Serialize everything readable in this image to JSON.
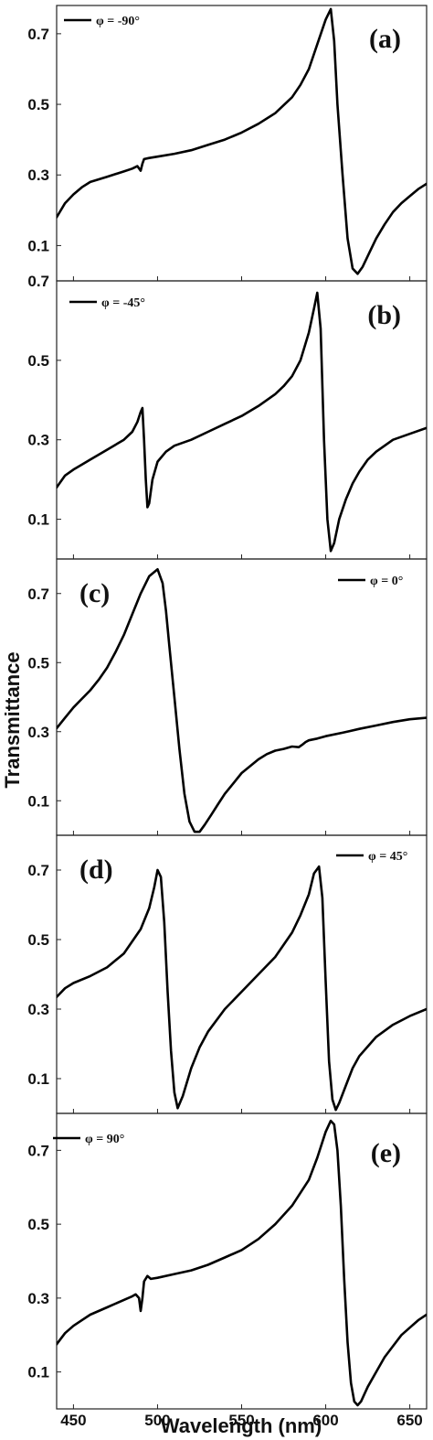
{
  "chart_data": {
    "type": "line",
    "xlabel": "Wavelength (nm)",
    "ylabel": "Transmittance",
    "xlim": [
      440,
      660
    ],
    "x_ticks": [
      450,
      500,
      550,
      600,
      650
    ],
    "y_ticks": [
      0.1,
      0.3,
      0.5,
      0.7
    ],
    "line_color": "#000000",
    "panels": [
      {
        "label": "(a)",
        "legend": "φ = -90°",
        "ylim": [
          0.0,
          0.78
        ],
        "y_tick_labels": [
          "0.1",
          "0.3",
          "0.5",
          "0.7"
        ],
        "x": [
          440,
          445,
          450,
          455,
          460,
          470,
          480,
          485,
          488,
          490,
          491,
          492,
          495,
          500,
          510,
          520,
          530,
          540,
          550,
          560,
          570,
          580,
          585,
          590,
          595,
          600,
          603,
          605,
          607,
          610,
          613,
          616,
          619,
          622,
          626,
          630,
          635,
          640,
          645,
          650,
          655,
          660
        ],
        "y": [
          0.18,
          0.22,
          0.245,
          0.265,
          0.28,
          0.295,
          0.31,
          0.318,
          0.325,
          0.312,
          0.332,
          0.345,
          0.348,
          0.352,
          0.36,
          0.37,
          0.385,
          0.4,
          0.42,
          0.445,
          0.475,
          0.52,
          0.555,
          0.6,
          0.67,
          0.74,
          0.77,
          0.68,
          0.5,
          0.3,
          0.12,
          0.035,
          0.02,
          0.04,
          0.08,
          0.12,
          0.16,
          0.195,
          0.22,
          0.24,
          0.26,
          0.275
        ]
      },
      {
        "label": "(b)",
        "legend": "φ = -45°",
        "ylim": [
          0.0,
          0.7
        ],
        "y_tick_labels": [
          "0.1",
          "0.3",
          "0.5",
          "0.7"
        ],
        "x": [
          440,
          445,
          450,
          460,
          470,
          480,
          485,
          488,
          490,
          491,
          492,
          493,
          494,
          495,
          497,
          500,
          505,
          510,
          520,
          530,
          540,
          550,
          560,
          570,
          575,
          580,
          585,
          590,
          593,
          595,
          597,
          599,
          601,
          603,
          605,
          608,
          612,
          616,
          620,
          625,
          630,
          640,
          650,
          660
        ],
        "y": [
          0.18,
          0.21,
          0.225,
          0.25,
          0.275,
          0.3,
          0.32,
          0.345,
          0.37,
          0.38,
          0.3,
          0.2,
          0.13,
          0.14,
          0.2,
          0.245,
          0.27,
          0.285,
          0.3,
          0.32,
          0.34,
          0.36,
          0.385,
          0.415,
          0.435,
          0.46,
          0.5,
          0.57,
          0.63,
          0.67,
          0.58,
          0.3,
          0.1,
          0.02,
          0.04,
          0.1,
          0.15,
          0.19,
          0.22,
          0.25,
          0.27,
          0.3,
          0.315,
          0.33
        ]
      },
      {
        "label": "(c)",
        "legend": "φ = 0°",
        "ylim": [
          0.0,
          0.8
        ],
        "y_tick_labels": [
          "0.1",
          "0.3",
          "0.5",
          "0.7"
        ],
        "x": [
          440,
          445,
          450,
          455,
          460,
          465,
          470,
          475,
          480,
          485,
          490,
          495,
          500,
          503,
          505,
          507,
          510,
          513,
          516,
          519,
          522,
          525,
          528,
          532,
          536,
          540,
          545,
          550,
          555,
          560,
          565,
          570,
          575,
          580,
          584,
          586,
          588,
          590,
          595,
          600,
          610,
          620,
          630,
          640,
          650,
          660
        ],
        "y": [
          0.31,
          0.34,
          0.37,
          0.395,
          0.42,
          0.45,
          0.485,
          0.53,
          0.58,
          0.64,
          0.7,
          0.75,
          0.77,
          0.73,
          0.65,
          0.55,
          0.4,
          0.25,
          0.12,
          0.04,
          0.01,
          0.01,
          0.03,
          0.06,
          0.09,
          0.12,
          0.15,
          0.18,
          0.2,
          0.22,
          0.235,
          0.245,
          0.25,
          0.257,
          0.255,
          0.262,
          0.27,
          0.275,
          0.28,
          0.287,
          0.297,
          0.308,
          0.318,
          0.328,
          0.336,
          0.34
        ]
      },
      {
        "label": "(d)",
        "legend": "φ = 45°",
        "ylim": [
          0.0,
          0.8
        ],
        "y_tick_labels": [
          "0.1",
          "0.3",
          "0.5",
          "0.7"
        ],
        "x": [
          440,
          445,
          450,
          460,
          470,
          480,
          490,
          495,
          498,
          500,
          502,
          504,
          506,
          508,
          510,
          512,
          515,
          520,
          525,
          530,
          540,
          550,
          560,
          570,
          580,
          585,
          590,
          593,
          596,
          598,
          600,
          602,
          604,
          606,
          608,
          612,
          616,
          620,
          630,
          640,
          650,
          660
        ],
        "y": [
          0.335,
          0.36,
          0.375,
          0.395,
          0.42,
          0.46,
          0.53,
          0.59,
          0.65,
          0.7,
          0.68,
          0.55,
          0.35,
          0.18,
          0.06,
          0.015,
          0.05,
          0.13,
          0.19,
          0.235,
          0.3,
          0.35,
          0.4,
          0.45,
          0.52,
          0.57,
          0.63,
          0.69,
          0.71,
          0.62,
          0.38,
          0.15,
          0.04,
          0.01,
          0.03,
          0.08,
          0.13,
          0.165,
          0.22,
          0.255,
          0.28,
          0.3
        ]
      },
      {
        "label": "(e)",
        "legend": "φ = 90°",
        "ylim": [
          0.0,
          0.8
        ],
        "y_tick_labels": [
          "0.1",
          "0.3",
          "0.5",
          "0.7"
        ],
        "x": [
          440,
          445,
          450,
          455,
          460,
          470,
          480,
          485,
          487,
          489,
          490,
          491,
          492,
          494,
          496,
          500,
          510,
          520,
          530,
          540,
          550,
          560,
          570,
          580,
          590,
          595,
          600,
          603,
          605,
          607,
          609,
          611,
          613,
          615,
          617,
          619,
          621,
          625,
          630,
          635,
          640,
          645,
          650,
          655,
          660
        ],
        "y": [
          0.175,
          0.205,
          0.225,
          0.24,
          0.255,
          0.275,
          0.295,
          0.305,
          0.31,
          0.3,
          0.265,
          0.3,
          0.345,
          0.36,
          0.352,
          0.355,
          0.365,
          0.375,
          0.39,
          0.41,
          0.43,
          0.46,
          0.5,
          0.55,
          0.62,
          0.68,
          0.75,
          0.78,
          0.77,
          0.7,
          0.55,
          0.35,
          0.18,
          0.07,
          0.02,
          0.01,
          0.02,
          0.06,
          0.1,
          0.14,
          0.17,
          0.2,
          0.22,
          0.24,
          0.255
        ]
      }
    ]
  }
}
